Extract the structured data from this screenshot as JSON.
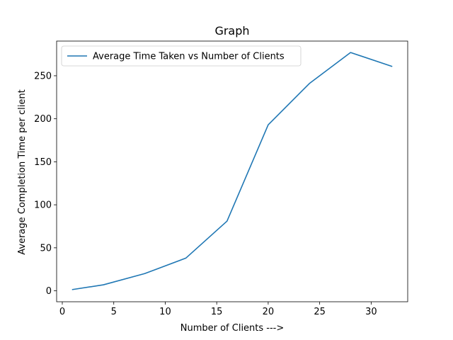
{
  "chart_data": {
    "type": "line",
    "title": "Graph",
    "xlabel": "Number of Clients --->",
    "ylabel": "Average Completion Time per client",
    "xlim": [
      -0.55,
      33.55
    ],
    "ylim": [
      -12.7,
      290.3
    ],
    "xticks": [
      0,
      5,
      10,
      15,
      20,
      25,
      30
    ],
    "yticks": [
      0,
      50,
      100,
      150,
      200,
      250
    ],
    "grid": false,
    "legend": "top-left",
    "series": [
      {
        "name": "Average Time Taken vs Number of Clients",
        "color": "#1f77b4",
        "x": [
          1,
          4,
          8,
          12,
          16,
          20,
          24,
          28,
          32
        ],
        "y": [
          1.5,
          7,
          20,
          38,
          81,
          193,
          241,
          277,
          261
        ]
      }
    ]
  }
}
